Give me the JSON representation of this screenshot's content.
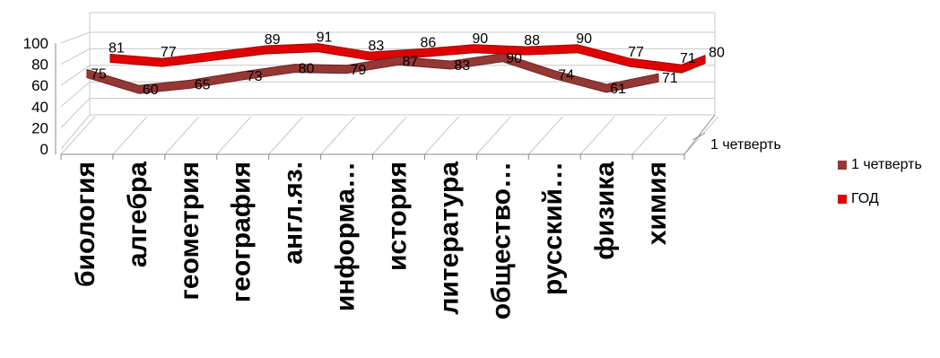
{
  "chart_data": {
    "type": "line",
    "categories": [
      "биология",
      "алгебра",
      "геометрия",
      "география",
      "англ.яз.",
      "информа…",
      "история",
      "литература",
      "общество…",
      "русский…",
      "физика",
      "химия"
    ],
    "series": [
      {
        "name": "1 четверть",
        "color": "#953735",
        "values": [
          75,
          60,
          65,
          73,
          80,
          79,
          87,
          83,
          90,
          74,
          61,
          71
        ]
      },
      {
        "name": "ГОД",
        "color": "#e00000",
        "values": [
          81,
          77,
          null,
          89,
          91,
          83,
          86,
          90,
          88,
          90,
          77,
          71
        ]
      }
    ],
    "series_end_label": "80",
    "depth_label": "1 четверть",
    "yticks": [
      "0",
      "20",
      "40",
      "60",
      "80",
      "100"
    ],
    "ylim": [
      0,
      100
    ],
    "grid": true,
    "legend_position": "right"
  }
}
